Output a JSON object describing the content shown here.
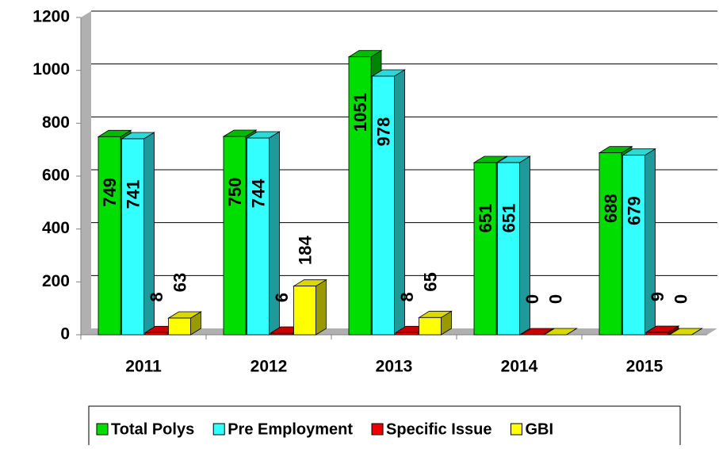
{
  "chart_data": {
    "type": "bar3d",
    "categories": [
      "2011",
      "2012",
      "2013",
      "2014",
      "2015"
    ],
    "series": [
      {
        "name": "Total Polys",
        "color": "#00dd00",
        "values": [
          749,
          750,
          1051,
          651,
          688
        ]
      },
      {
        "name": "Pre Employment",
        "color": "#33ffff",
        "values": [
          741,
          744,
          978,
          651,
          679
        ]
      },
      {
        "name": "Specific Issue",
        "color": "#ee0000",
        "values": [
          8,
          6,
          8,
          0,
          9
        ]
      },
      {
        "name": "GBI",
        "color": "#ffff00",
        "values": [
          63,
          184,
          65,
          0,
          0
        ]
      }
    ],
    "ylim": [
      0,
      1200
    ],
    "yticks": [
      0,
      200,
      400,
      600,
      800,
      1000,
      1200
    ],
    "grid": true,
    "legend": "bottom"
  }
}
